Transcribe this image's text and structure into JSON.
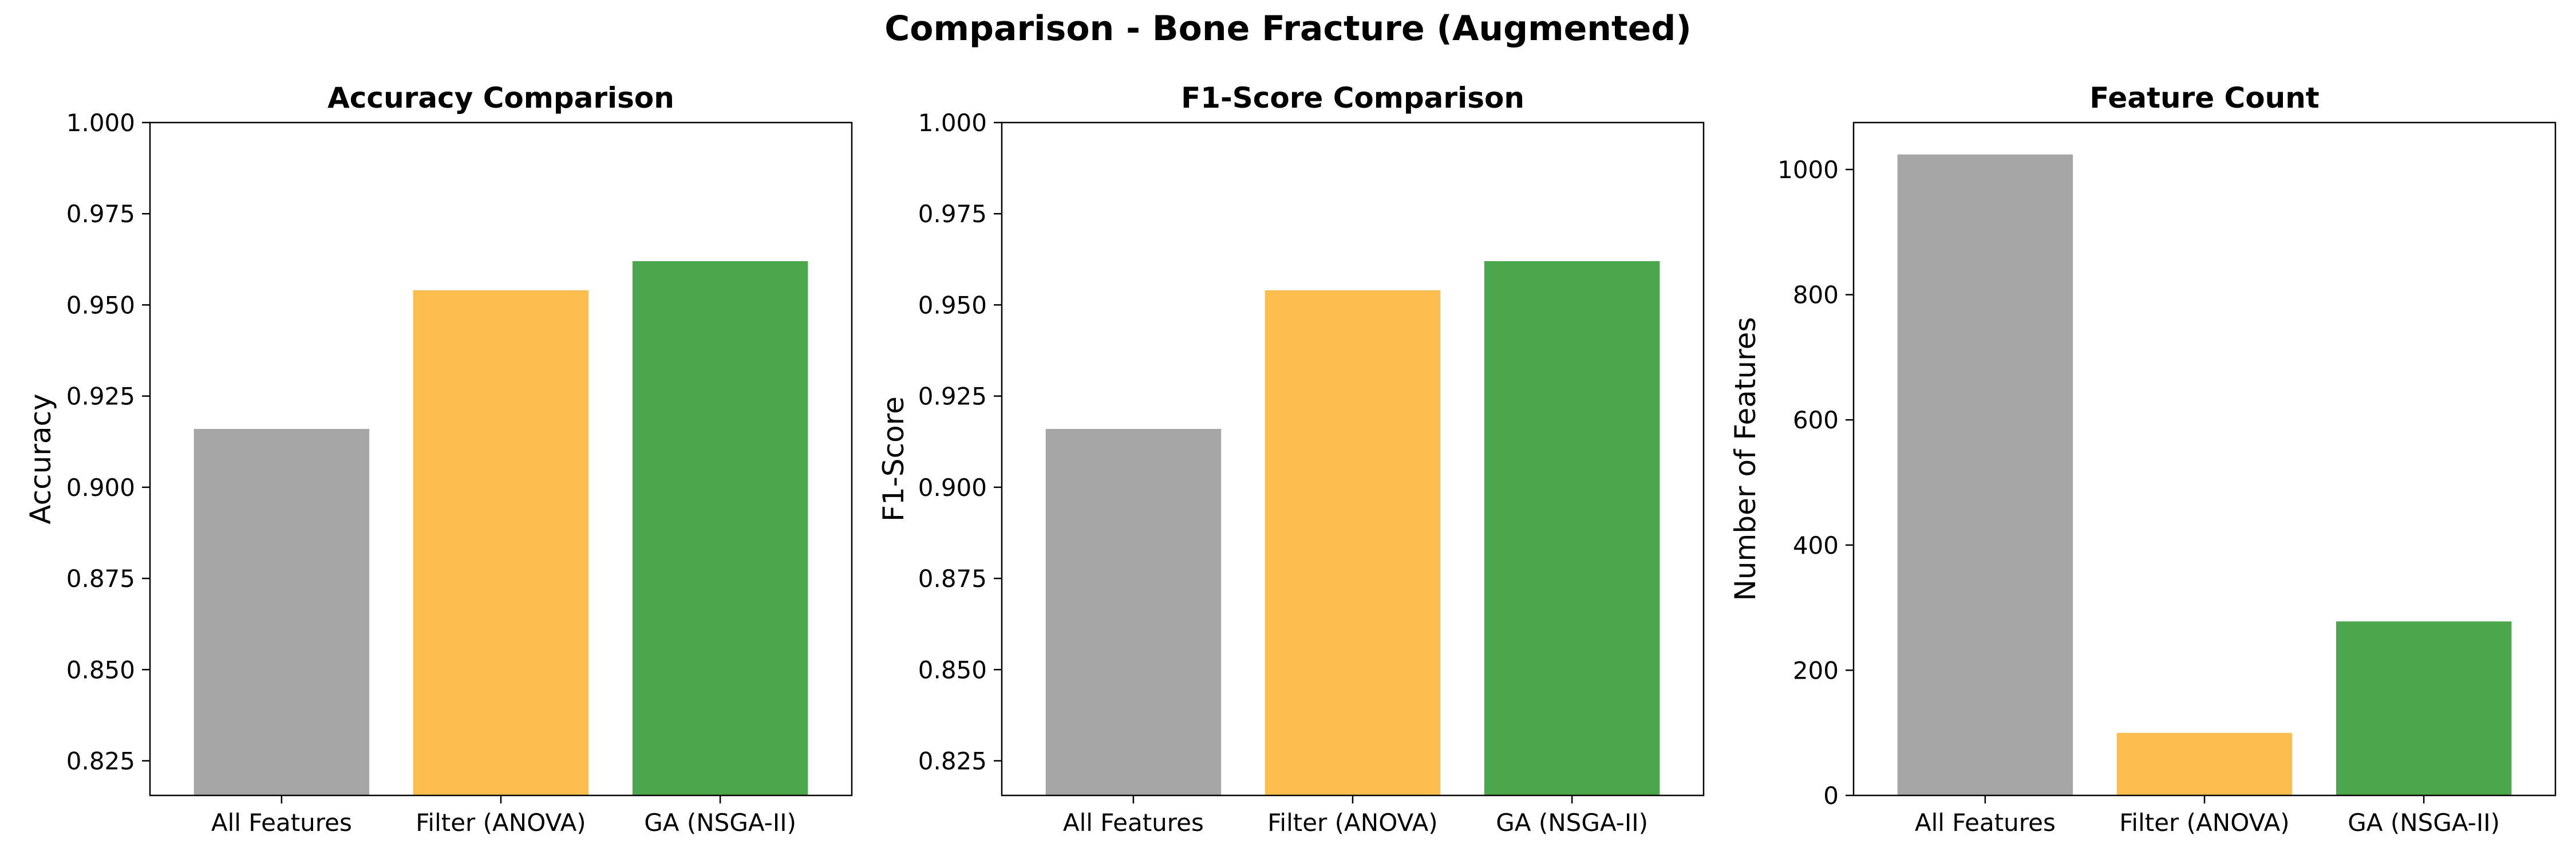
{
  "figure": {
    "suptitle": "Comparison - Bone Fracture (Augmented)"
  },
  "chart_data": [
    {
      "type": "bar",
      "title": "Accuracy Comparison",
      "xlabel": "",
      "ylabel": "Accuracy",
      "categories": [
        "All Features",
        "Filter (ANOVA)",
        "GA (NSGA-II)"
      ],
      "values": [
        0.916,
        0.954,
        0.962
      ],
      "colors": [
        "#a6a6a6",
        "#fdbe4f",
        "#4ca64c"
      ],
      "ylim": [
        0.8155,
        1.0
      ],
      "yticks": [
        0.825,
        0.85,
        0.875,
        0.9,
        0.925,
        0.95,
        0.975,
        1.0
      ],
      "ytick_labels": [
        "0.825",
        "0.850",
        "0.875",
        "0.900",
        "0.925",
        "0.950",
        "0.975",
        "1.000"
      ],
      "grid": false,
      "legend": "none"
    },
    {
      "type": "bar",
      "title": "F1-Score Comparison",
      "xlabel": "",
      "ylabel": "F1-Score",
      "categories": [
        "All Features",
        "Filter (ANOVA)",
        "GA (NSGA-II)"
      ],
      "values": [
        0.916,
        0.954,
        0.962
      ],
      "colors": [
        "#a6a6a6",
        "#fdbe4f",
        "#4ca64c"
      ],
      "ylim": [
        0.8155,
        1.0
      ],
      "yticks": [
        0.825,
        0.85,
        0.875,
        0.9,
        0.925,
        0.95,
        0.975,
        1.0
      ],
      "ytick_labels": [
        "0.825",
        "0.850",
        "0.875",
        "0.900",
        "0.925",
        "0.950",
        "0.975",
        "1.000"
      ],
      "grid": false,
      "legend": "none"
    },
    {
      "type": "bar",
      "title": "Feature Count",
      "xlabel": "",
      "ylabel": "Number of Features",
      "categories": [
        "All Features",
        "Filter (ANOVA)",
        "GA (NSGA-II)"
      ],
      "values": [
        1024,
        100,
        278
      ],
      "colors": [
        "#a6a6a6",
        "#fdbe4f",
        "#4ca64c"
      ],
      "ylim": [
        0,
        1075
      ],
      "yticks": [
        0,
        200,
        400,
        600,
        800,
        1000
      ],
      "ytick_labels": [
        "0",
        "200",
        "400",
        "600",
        "800",
        "1000"
      ],
      "grid": false,
      "legend": "none"
    }
  ]
}
